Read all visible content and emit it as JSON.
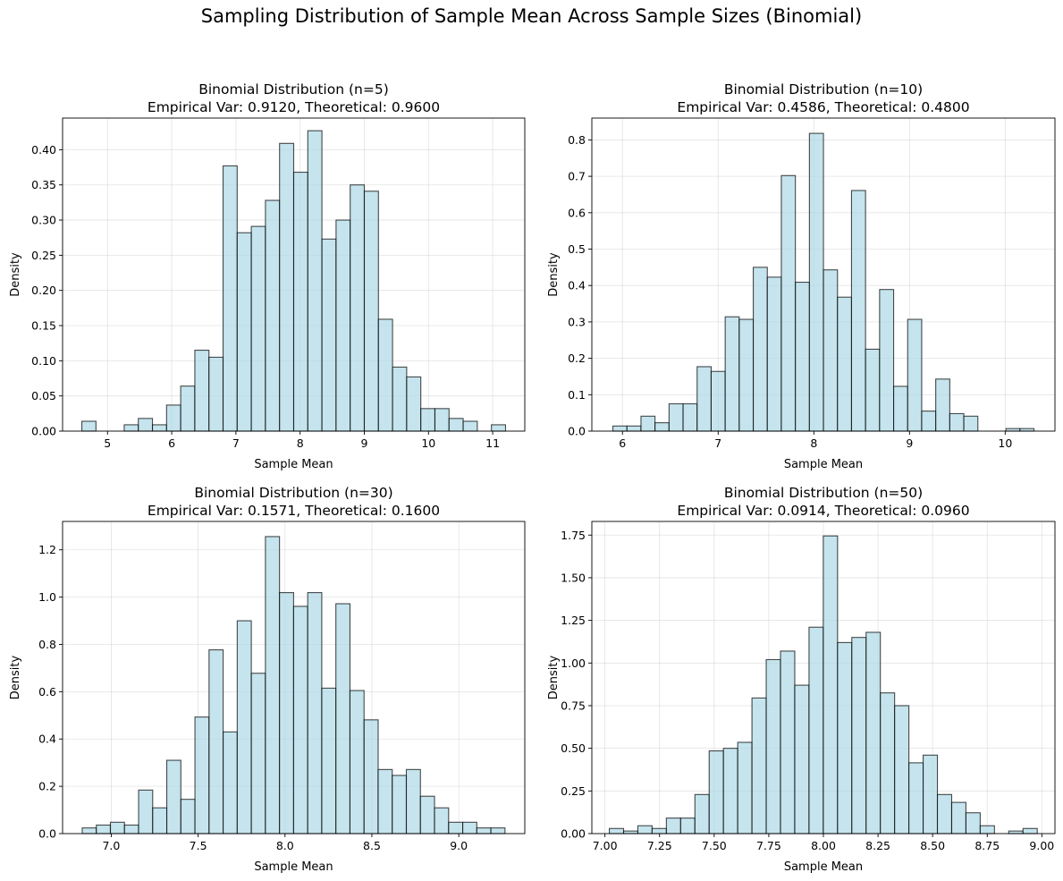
{
  "suptitle": "Sampling Distribution of Sample Mean Across Sample Sizes (Binomial)",
  "style": {
    "bar_fill": "#add8e6",
    "bar_fill_opacity": 0.7,
    "bar_edge": "#000000",
    "grid_color": "#b0b0b0"
  },
  "chart_data": [
    {
      "type": "bar",
      "title_line1": "Binomial Distribution (n=5)",
      "title_line2": "Empirical Var: 0.9120, Theoretical: 0.9600",
      "xlabel": "Sample Mean",
      "ylabel": "Density",
      "xlim": [
        4.3,
        11.5
      ],
      "ylim": [
        0,
        0.445
      ],
      "xticks": [
        5,
        6,
        7,
        8,
        9,
        10,
        11
      ],
      "xtick_labels": [
        "5",
        "6",
        "7",
        "8",
        "9",
        "10",
        "11"
      ],
      "yticks": [
        0,
        0.05,
        0.1,
        0.15,
        0.2,
        0.25,
        0.3,
        0.35,
        0.4
      ],
      "ytick_labels": [
        "0.00",
        "0.05",
        "0.10",
        "0.15",
        "0.20",
        "0.25",
        "0.30",
        "0.35",
        "0.40"
      ],
      "grid": true,
      "bin_start": 4.6,
      "bin_width": 0.22,
      "values": [
        0.014,
        0,
        0,
        0.009,
        0.018,
        0.009,
        0.037,
        0.064,
        0.115,
        0.105,
        0.377,
        0.282,
        0.291,
        0.328,
        0.409,
        0.368,
        0.427,
        0.273,
        0.3,
        0.35,
        0.341,
        0.159,
        0.091,
        0.077,
        0.032,
        0.032,
        0.018,
        0.014,
        0,
        0.009
      ]
    },
    {
      "type": "bar",
      "title_line1": "Binomial Distribution (n=10)",
      "title_line2": "Empirical Var: 0.4586, Theoretical: 0.4800",
      "xlabel": "Sample Mean",
      "ylabel": "Density",
      "xlim": [
        5.68,
        10.52
      ],
      "ylim": [
        0,
        0.86
      ],
      "xticks": [
        6,
        7,
        8,
        9,
        10
      ],
      "xtick_labels": [
        "6",
        "7",
        "8",
        "9",
        "10"
      ],
      "yticks": [
        0,
        0.1,
        0.2,
        0.3,
        0.4,
        0.5,
        0.6,
        0.7,
        0.8
      ],
      "ytick_labels": [
        "0.0",
        "0.1",
        "0.2",
        "0.3",
        "0.4",
        "0.5",
        "0.6",
        "0.7",
        "0.8"
      ],
      "grid": true,
      "bin_start": 5.9,
      "bin_width": 0.1467,
      "values": [
        0.014,
        0.014,
        0.041,
        0.023,
        0.075,
        0.075,
        0.177,
        0.164,
        0.314,
        0.307,
        0.45,
        0.423,
        0.702,
        0.409,
        0.818,
        0.443,
        0.368,
        0.661,
        0.225,
        0.389,
        0.123,
        0.307,
        0.055,
        0.143,
        0.048,
        0.041,
        0,
        0,
        0.007,
        0.007
      ]
    },
    {
      "type": "bar",
      "title_line1": "Binomial Distribution (n=30)",
      "title_line2": "Empirical Var: 0.1571, Theoretical: 0.1600",
      "xlabel": "Sample Mean",
      "ylabel": "Density",
      "xlim": [
        6.72,
        9.38
      ],
      "ylim": [
        0,
        1.32
      ],
      "xticks": [
        7.0,
        7.5,
        8.0,
        8.5,
        9.0
      ],
      "xtick_labels": [
        "7.0",
        "7.5",
        "8.0",
        "8.5",
        "9.0"
      ],
      "yticks": [
        0,
        0.2,
        0.4,
        0.6,
        0.8,
        1.0,
        1.2
      ],
      "ytick_labels": [
        "0.0",
        "0.2",
        "0.4",
        "0.6",
        "0.8",
        "1.0",
        "1.2"
      ],
      "grid": true,
      "bin_start": 6.833,
      "bin_width": 0.0811,
      "values": [
        0.024,
        0.036,
        0.048,
        0.036,
        0.184,
        0.109,
        0.31,
        0.145,
        0.493,
        0.777,
        0.43,
        0.9,
        0.678,
        1.256,
        1.019,
        0.961,
        1.019,
        0.615,
        0.972,
        0.605,
        0.481,
        0.271,
        0.246,
        0.271,
        0.158,
        0.109,
        0.048,
        0.048,
        0.024,
        0.024
      ]
    },
    {
      "type": "bar",
      "title_line1": "Binomial Distribution (n=50)",
      "title_line2": "Empirical Var: 0.0914, Theoretical: 0.0960",
      "xlabel": "Sample Mean",
      "ylabel": "Density",
      "xlim": [
        6.94,
        9.06
      ],
      "ylim": [
        0,
        1.83
      ],
      "xticks": [
        7.0,
        7.25,
        7.5,
        7.75,
        8.0,
        8.25,
        8.5,
        8.75,
        9.0
      ],
      "xtick_labels": [
        "7.00",
        "7.25",
        "7.50",
        "7.75",
        "8.00",
        "8.25",
        "8.50",
        "8.75",
        "9.00"
      ],
      "yticks": [
        0,
        0.25,
        0.5,
        0.75,
        1.0,
        1.25,
        1.5,
        1.75
      ],
      "ytick_labels": [
        "0.00",
        "0.25",
        "0.50",
        "0.75",
        "1.00",
        "1.25",
        "1.50",
        "1.75"
      ],
      "grid": true,
      "bin_start": 7.02,
      "bin_width": 0.0653,
      "values": [
        0.03,
        0.015,
        0.046,
        0.03,
        0.091,
        0.091,
        0.229,
        0.485,
        0.5,
        0.535,
        0.795,
        1.02,
        1.07,
        0.87,
        1.21,
        1.745,
        1.12,
        1.15,
        1.18,
        0.825,
        0.75,
        0.415,
        0.46,
        0.229,
        0.183,
        0.122,
        0.046,
        0,
        0.015,
        0.03
      ]
    }
  ]
}
